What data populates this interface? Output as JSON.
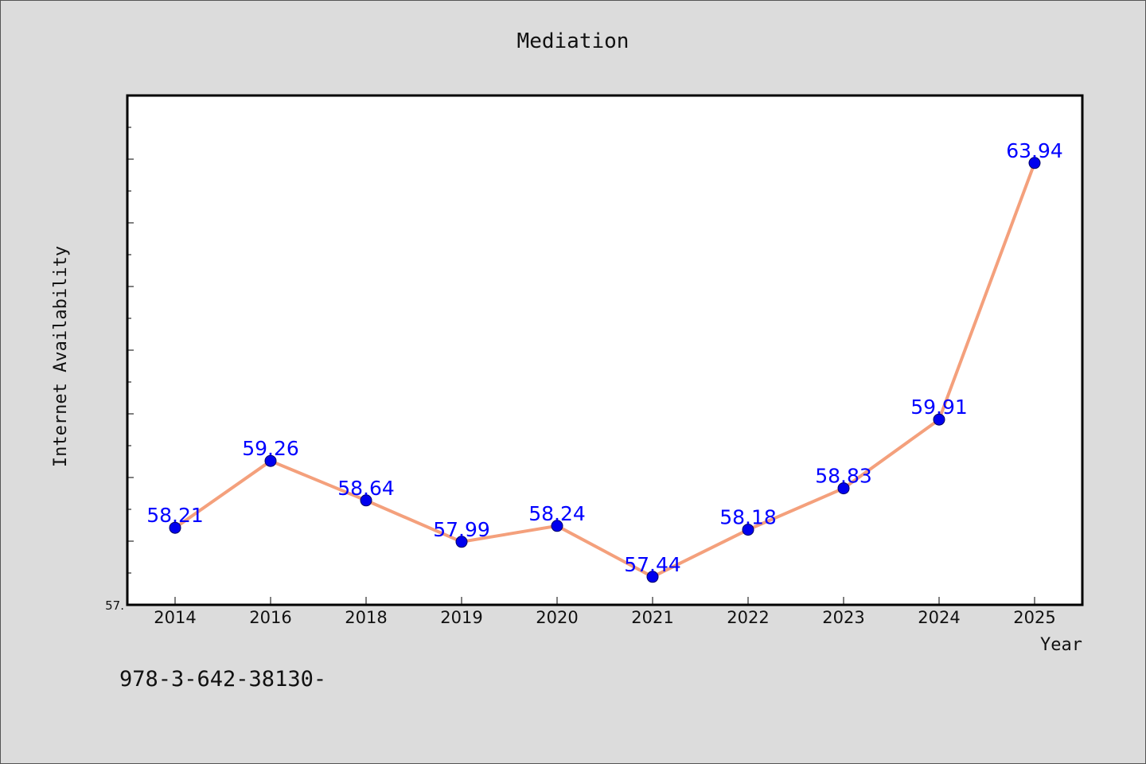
{
  "chart_data": {
    "type": "line",
    "title": "Mediation",
    "xlabel": "Year",
    "ylabel": "Internet Availability",
    "categories": [
      "2014",
      "2016",
      "2018",
      "2019",
      "2020",
      "2021",
      "2022",
      "2023",
      "2024",
      "2025"
    ],
    "series": [
      {
        "values": [
          58.21,
          59.26,
          58.64,
          57.99,
          58.24,
          57.44,
          58.18,
          58.83,
          59.91,
          63.94
        ]
      }
    ],
    "data_labels": [
      "58.21",
      "59.26",
      "58.64",
      "57.99",
      "58.24",
      "57.44",
      "58.18",
      "58.83",
      "59.91",
      "63.94"
    ],
    "ylim": [
      57.0,
      65.0
    ],
    "y_minor_tick_step": 0.5,
    "y_tick_labels": [
      "57."
    ],
    "grid": false,
    "legend": "none",
    "colors": {
      "line": "#f4a07c",
      "marker": "#0000ee",
      "marker_edge": "#000066",
      "data_label": "#0000ff",
      "plot_background": "#ffffff",
      "figure_background": "#dcdcdc"
    }
  },
  "footer": {
    "text": "978-3-642-38130-"
  }
}
